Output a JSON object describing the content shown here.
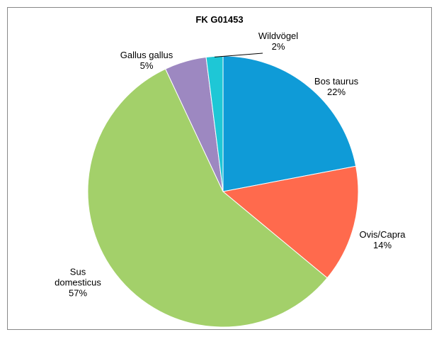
{
  "chart_data": {
    "type": "pie",
    "title": "FK G01453",
    "categories": [
      "Bos taurus",
      "Ovis/Capra",
      "Sus domesticus",
      "Gallus gallus",
      "Wildvögel"
    ],
    "values": [
      22,
      14,
      57,
      5,
      2
    ],
    "value_labels": [
      "22%",
      "14%",
      "57%",
      "5%",
      "2%"
    ],
    "colors": [
      "#0f9bd7",
      "#ff6a4d",
      "#a3d06a",
      "#9d88c1",
      "#1ec7d6"
    ]
  }
}
